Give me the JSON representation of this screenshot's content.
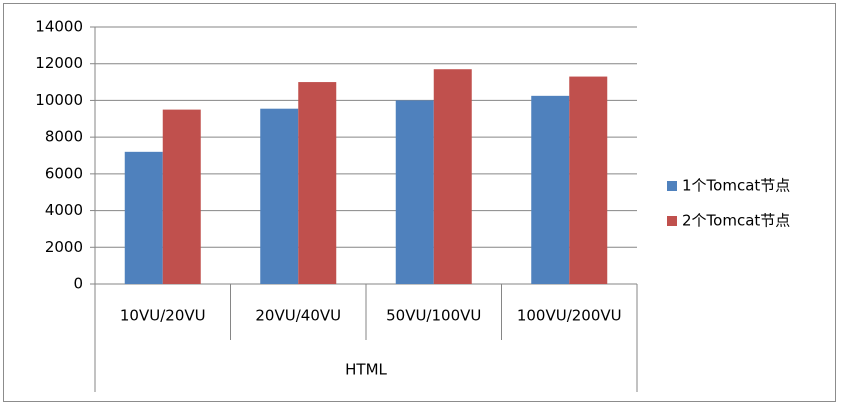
{
  "chart_data": {
    "type": "bar",
    "categories": [
      "10VU/20VU",
      "20VU/40VU",
      "50VU/100VU",
      "100VU/200VU"
    ],
    "category_group": "HTML",
    "series": [
      {
        "name": "1个Tomcat节点",
        "color": "#4f81bd",
        "values": [
          7200,
          9550,
          10000,
          10250
        ]
      },
      {
        "name": "2个Tomcat节点",
        "color": "#c0504d",
        "values": [
          9500,
          11000,
          11700,
          11300
        ]
      }
    ],
    "ylim": [
      0,
      14000
    ],
    "yticks": [
      0,
      2000,
      4000,
      6000,
      8000,
      10000,
      12000,
      14000
    ],
    "grid": true,
    "legend": "right"
  }
}
